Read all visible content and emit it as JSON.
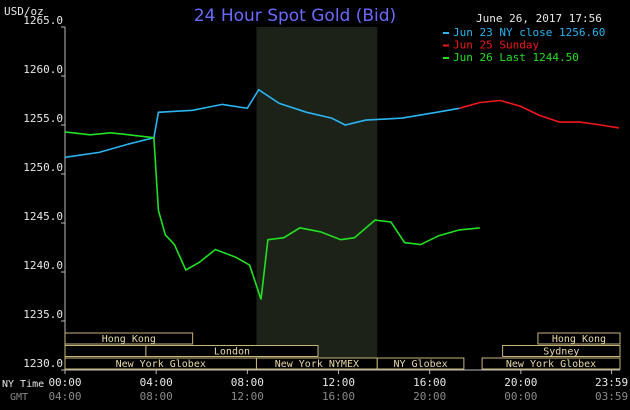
{
  "chart_data": {
    "type": "line",
    "title": "24 Hour Spot Gold (Bid)",
    "unit_label": "USD/oz",
    "timestamp": "June 26, 2017 17:56",
    "x_row_label": "NY Time",
    "x2_row_label": "GMT",
    "xlim": [
      0,
      24.35
    ],
    "ylim": [
      1230,
      1265
    ],
    "yticks": [
      {
        "value": 1230,
        "label": "1230.0"
      },
      {
        "value": 1235,
        "label": "1235.0"
      },
      {
        "value": 1240,
        "label": "1240.0"
      },
      {
        "value": 1245,
        "label": "1245.0"
      },
      {
        "value": 1250,
        "label": "1250.0"
      },
      {
        "value": 1255,
        "label": "1255.0"
      },
      {
        "value": 1260,
        "label": "1260.0"
      },
      {
        "value": 1265,
        "label": "1265.0"
      }
    ],
    "xticks": [
      {
        "value": 0,
        "label": "00:00"
      },
      {
        "value": 4,
        "label": "04:00"
      },
      {
        "value": 8,
        "label": "08:00"
      },
      {
        "value": 12,
        "label": "12:00"
      },
      {
        "value": 16,
        "label": "16:00"
      },
      {
        "value": 20,
        "label": "20:00"
      },
      {
        "value": 23.98,
        "label": "23:59"
      }
    ],
    "x2ticks": [
      {
        "value": 0,
        "label": "04:00"
      },
      {
        "value": 4,
        "label": "08:00"
      },
      {
        "value": 8,
        "label": "12:00"
      },
      {
        "value": 12,
        "label": "16:00"
      },
      {
        "value": 16,
        "label": "20:00"
      },
      {
        "value": 20,
        "label": "00:00"
      },
      {
        "value": 23.98,
        "label": "03:59"
      }
    ],
    "shaded_range": [
      8.4,
      13.7
    ],
    "series": [
      {
        "name": "Jun 23 NY close 1256.60",
        "color": "#2ab4f0",
        "x": [
          0,
          1.5,
          2.7,
          3.9,
          4.1,
          5.6,
          6.9,
          8.0,
          8.5,
          9.4,
          10.6,
          11.7,
          12.3,
          13.2,
          14.8,
          16.3,
          17.3
        ],
        "values": [
          1251.7,
          1252.2,
          1253.0,
          1253.7,
          1256.3,
          1256.5,
          1257.1,
          1256.7,
          1258.6,
          1257.2,
          1256.3,
          1255.7,
          1255.0,
          1255.5,
          1255.7,
          1256.3,
          1256.7
        ]
      },
      {
        "name": "Jun 25 Sunday",
        "color": "#f01818",
        "x": [
          17.3,
          18.2,
          19.1,
          20.0,
          20.8,
          21.7,
          22.6,
          23.5,
          24.3
        ],
        "values": [
          1256.7,
          1257.3,
          1257.5,
          1256.9,
          1256.0,
          1255.3,
          1255.3,
          1255.0,
          1254.7
        ]
      },
      {
        "name": "Jun 26 Last 1244.50",
        "color": "#22e022",
        "x": [
          0,
          1.1,
          2.0,
          2.8,
          3.9,
          4.1,
          4.4,
          4.8,
          5.3,
          5.9,
          6.6,
          7.5,
          8.1,
          8.6,
          8.9,
          9.6,
          10.3,
          11.2,
          12.1,
          12.7,
          13.6,
          14.3,
          14.9,
          15.6,
          16.4,
          17.3,
          18.2
        ],
        "values": [
          1254.3,
          1254.0,
          1254.2,
          1254.0,
          1253.7,
          1246.3,
          1243.8,
          1242.8,
          1240.2,
          1241.0,
          1242.3,
          1241.5,
          1240.7,
          1237.2,
          1243.3,
          1243.5,
          1244.5,
          1244.1,
          1243.3,
          1243.5,
          1245.3,
          1245.1,
          1243.0,
          1242.8,
          1243.7,
          1244.3,
          1244.5
        ]
      }
    ],
    "sessions": [
      {
        "name": "Hong Kong",
        "row": 0,
        "start": 0,
        "end": 5.6
      },
      {
        "name": null,
        "row": 1,
        "start": 0,
        "end": 3.55
      },
      {
        "name": "London",
        "row": 1,
        "start": 3.55,
        "end": 11.1
      },
      {
        "name": "New York Globex",
        "row": 2,
        "start": 0,
        "end": 8.4
      },
      {
        "name": "New York NYMEX",
        "row": 2,
        "start": 8.4,
        "end": 13.7
      },
      {
        "name": "NY Globex",
        "row": 2,
        "start": 13.7,
        "end": 17.5
      },
      {
        "name": "Hong Kong",
        "row": 0,
        "start": 20.75,
        "end": 24.35
      },
      {
        "name": "Sydney",
        "row": 1,
        "start": 19.2,
        "end": 24.35
      },
      {
        "name": "New York Globex",
        "row": 2,
        "start": 18.3,
        "end": 24.35
      }
    ]
  }
}
